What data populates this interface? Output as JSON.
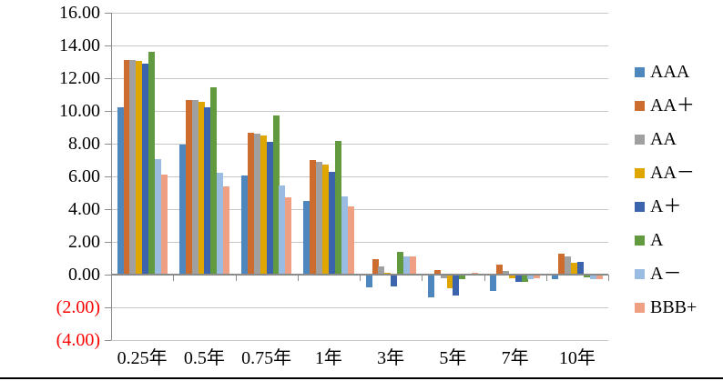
{
  "chart_data": {
    "type": "bar",
    "title": "",
    "xlabel": "",
    "ylabel": "",
    "categories": [
      "0.25年",
      "0.5年",
      "0.75年",
      "1年",
      "3年",
      "5年",
      "7年",
      "10年"
    ],
    "series": [
      {
        "name": "AAA",
        "color": "#4E87BE",
        "values": [
          10.25,
          7.95,
          6.05,
          4.5,
          -0.8,
          -1.4,
          -1.0,
          -0.3
        ]
      },
      {
        "name": "AA＋",
        "color": "#CC6C2E",
        "values": [
          13.1,
          10.65,
          8.65,
          7.0,
          0.95,
          0.3,
          0.6,
          1.3
        ]
      },
      {
        "name": "AA",
        "color": "#A0A0A0",
        "values": [
          13.1,
          10.65,
          8.6,
          6.9,
          0.5,
          -0.2,
          0.2,
          1.1
        ]
      },
      {
        "name": "AA－",
        "color": "#DFA600",
        "values": [
          13.05,
          10.55,
          8.5,
          6.7,
          0.1,
          -0.85,
          -0.2,
          0.7
        ]
      },
      {
        "name": "A＋",
        "color": "#3C64AC",
        "values": [
          12.9,
          10.25,
          8.1,
          6.3,
          -0.7,
          -1.25,
          -0.45,
          0.8
        ]
      },
      {
        "name": "A",
        "color": "#619A3F",
        "values": [
          13.6,
          11.45,
          9.7,
          8.15,
          1.4,
          -0.3,
          -0.45,
          -0.15
        ]
      },
      {
        "name": "A－",
        "color": "#9ABCE2",
        "values": [
          7.05,
          6.2,
          5.45,
          4.8,
          1.1,
          0.0,
          -0.3,
          -0.25
        ]
      },
      {
        "name": "BBB+",
        "color": "#EFA083",
        "values": [
          6.1,
          5.4,
          4.75,
          4.15,
          1.1,
          0.1,
          -0.2,
          -0.3
        ]
      }
    ],
    "ylim": [
      -4,
      16
    ],
    "grid": true,
    "legend_position": "right",
    "y_ticks": [
      {
        "value": 16,
        "label": "16.00",
        "negative": false
      },
      {
        "value": 14,
        "label": "14.00",
        "negative": false
      },
      {
        "value": 12,
        "label": "12.00",
        "negative": false
      },
      {
        "value": 10,
        "label": "10.00",
        "negative": false
      },
      {
        "value": 8,
        "label": "8.00",
        "negative": false
      },
      {
        "value": 6,
        "label": "6.00",
        "negative": false
      },
      {
        "value": 4,
        "label": "4.00",
        "negative": false
      },
      {
        "value": 2,
        "label": "2.00",
        "negative": false
      },
      {
        "value": 0,
        "label": "0.00",
        "negative": false
      },
      {
        "value": -2,
        "label": "(2.00)",
        "negative": true
      },
      {
        "value": -4,
        "label": "(4.00)",
        "negative": true
      }
    ]
  },
  "colors": {
    "gridline": "#C6C6C6",
    "axis": "#8A8A8A",
    "negative_label": "#FF0000",
    "label": "#000000",
    "background": "#FFFFFF",
    "bottom_border": "#000000"
  }
}
